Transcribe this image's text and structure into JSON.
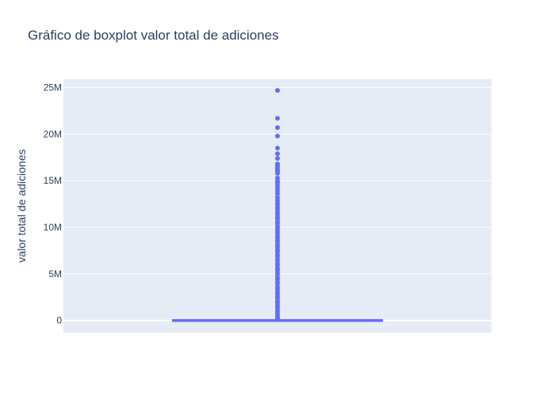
{
  "chart_data": {
    "type": "box",
    "title": "Gráfico de boxplot valor total de adiciones",
    "ylabel": "valor total de adiciones",
    "xlabel": "",
    "ylim": [
      -1300000,
      25900000
    ],
    "yticks": [
      {
        "value": 0,
        "label": "0"
      },
      {
        "value": 5000000,
        "label": "5M"
      },
      {
        "value": 10000000,
        "label": "10M"
      },
      {
        "value": 15000000,
        "label": "15M"
      },
      {
        "value": 20000000,
        "label": "20M"
      },
      {
        "value": 25000000,
        "label": "25M"
      }
    ],
    "grid": true,
    "color": "#636efa",
    "plot_bgcolor": "#e5ecf6",
    "box": {
      "min": 0,
      "q1": 0,
      "median": 0,
      "q3": 0,
      "upper_fence": 0
    },
    "outliers": [
      24700000,
      21700000,
      20700000,
      19800000,
      18500000,
      17900000,
      17400000,
      16800000,
      16600000,
      16400000,
      16200000,
      16000000,
      15800000,
      15300000,
      15000000,
      14800000,
      14500000,
      14200000,
      13900000,
      13600000,
      13200000,
      12900000,
      12600000,
      12400000,
      12100000,
      11900000,
      11600000,
      11400000,
      11100000,
      10900000,
      10600000,
      10400000,
      10100000,
      9900000,
      9600000,
      9400000,
      9100000,
      8900000,
      8600000,
      8400000,
      8100000,
      7900000,
      7600000,
      7400000,
      7100000,
      6900000,
      6600000,
      6400000,
      6100000,
      5900000,
      5600000,
      5400000,
      5100000,
      4900000,
      4600000,
      4400000,
      4100000,
      3900000,
      3600000,
      3400000,
      3100000,
      2900000,
      2600000,
      2400000,
      2100000,
      1900000,
      1600000,
      1400000,
      1100000,
      900000,
      700000,
      500000,
      300000,
      150000
    ]
  }
}
